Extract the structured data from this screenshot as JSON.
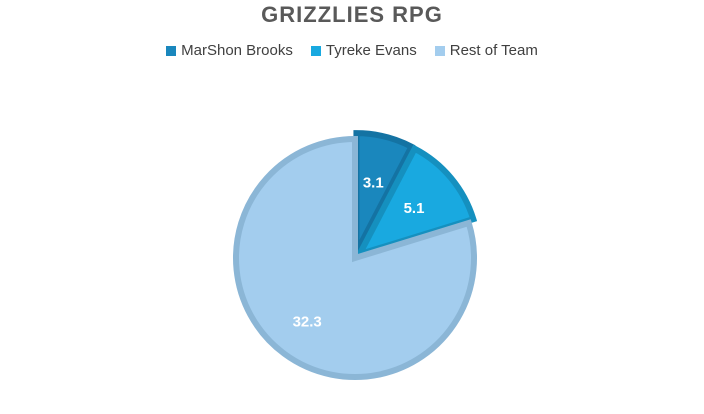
{
  "chart_data": {
    "type": "pie",
    "title": "GRIZZLIES RPG",
    "legend_position": "top",
    "slices": [
      {
        "name": "MarShon Brooks",
        "value": 3.1,
        "label": "3.1",
        "color": "#1a87bd",
        "edge": "#1473a3",
        "exploded": true
      },
      {
        "name": "Tyreke Evans",
        "value": 5.1,
        "label": "5.1",
        "color": "#19a9e0",
        "edge": "#1590bf",
        "exploded": true
      },
      {
        "name": "Rest of Team",
        "value": 32.3,
        "label": "32.3",
        "color": "#a3cdee",
        "edge": "#8bb6d6",
        "exploded": false
      }
    ]
  }
}
